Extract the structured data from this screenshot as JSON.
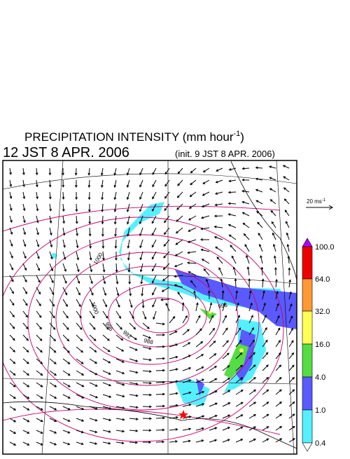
{
  "header": {
    "title": "PRECIPITATION INTENSITY (mm hour",
    "title_exponent": "-1",
    "title_end": ")",
    "valid_time": "12 JST 8 APR. 2006",
    "init_time": "(init. 9 JST 8 APR. 2006)"
  },
  "wind_scale": {
    "label": "20 ms",
    "exponent": "-1"
  },
  "colorbar": {
    "labels": [
      "100.0",
      "64.0",
      "32.0",
      "16.0",
      "4.0",
      "1.0",
      "0.4"
    ]
  },
  "contour_labels": [
    "1000",
    "1000",
    "996",
    "992",
    "988",
    "996"
  ]
}
